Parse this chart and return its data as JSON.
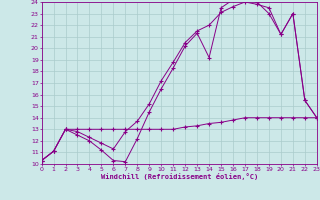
{
  "xlabel": "Windchill (Refroidissement éolien,°C)",
  "bg_color": "#cce8e8",
  "line_color": "#880088",
  "grid_color": "#aacccc",
  "xlim": [
    0,
    23
  ],
  "ylim": [
    10,
    24
  ],
  "xticks": [
    0,
    1,
    2,
    3,
    4,
    5,
    6,
    7,
    8,
    9,
    10,
    11,
    12,
    13,
    14,
    15,
    16,
    17,
    18,
    19,
    20,
    21,
    22,
    23
  ],
  "yticks": [
    10,
    11,
    12,
    13,
    14,
    15,
    16,
    17,
    18,
    19,
    20,
    21,
    22,
    23,
    24
  ],
  "line1_x": [
    0,
    1,
    2,
    3,
    4,
    5,
    6,
    7,
    8,
    9,
    10,
    11,
    12,
    13,
    14,
    15,
    16,
    17,
    18,
    19,
    20,
    21,
    22,
    23
  ],
  "line1_y": [
    10.3,
    11.1,
    13.0,
    12.5,
    12.0,
    11.2,
    10.3,
    10.2,
    12.2,
    14.5,
    16.5,
    18.3,
    20.2,
    21.3,
    19.2,
    23.5,
    24.2,
    24.2,
    24.0,
    23.0,
    21.2,
    23.0,
    15.5,
    14.0
  ],
  "line2_x": [
    0,
    1,
    2,
    3,
    4,
    5,
    6,
    7,
    8,
    9,
    10,
    11,
    12,
    13,
    14,
    15,
    16,
    17,
    18,
    19,
    20,
    21,
    22,
    23
  ],
  "line2_y": [
    10.3,
    11.1,
    13.0,
    12.8,
    12.3,
    11.8,
    11.3,
    12.8,
    13.7,
    15.2,
    17.2,
    18.8,
    20.5,
    21.5,
    22.0,
    23.1,
    23.6,
    24.0,
    23.8,
    23.5,
    21.2,
    23.0,
    15.5,
    14.0
  ],
  "line3_x": [
    0,
    1,
    2,
    3,
    4,
    5,
    6,
    7,
    8,
    9,
    10,
    11,
    12,
    13,
    14,
    15,
    16,
    17,
    18,
    19,
    20,
    21,
    22,
    23
  ],
  "line3_y": [
    10.3,
    11.1,
    13.0,
    13.0,
    13.0,
    13.0,
    13.0,
    13.0,
    13.0,
    13.0,
    13.0,
    13.0,
    13.2,
    13.3,
    13.5,
    13.6,
    13.8,
    14.0,
    14.0,
    14.0,
    14.0,
    14.0,
    14.0,
    14.0
  ]
}
